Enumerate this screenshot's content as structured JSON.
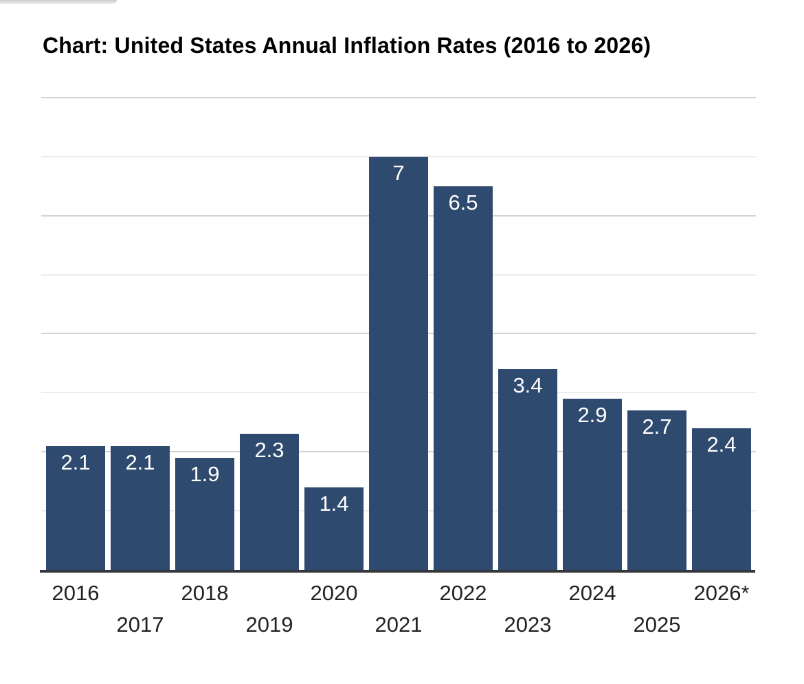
{
  "chart_data": {
    "type": "bar",
    "title": "Chart: United States Annual Inflation Rates (2016 to 2026)",
    "categories": [
      "2016",
      "2017",
      "2018",
      "2019",
      "2020",
      "2021",
      "2022",
      "2023",
      "2024",
      "2025",
      "2026*"
    ],
    "values": [
      2.1,
      2.1,
      1.9,
      2.3,
      1.4,
      7,
      6.5,
      3.4,
      2.9,
      2.7,
      2.4
    ],
    "bar_labels": [
      "2.1",
      "2.1",
      "1.9",
      "2.3",
      "1.4",
      "7",
      "6.5",
      "3.4",
      "2.9",
      "2.7",
      "2.4"
    ],
    "xlabel": "",
    "ylabel": "",
    "ylim": [
      0,
      8
    ],
    "gridline_interval": 1,
    "y_axis_labels_visible": false,
    "legend_position": "none",
    "grid": "horizontal",
    "tick_label_rows": "staggered-two-rows",
    "colors": {
      "bar": "#2e4a6e",
      "bar_label": "#ffffff",
      "gridline_major": "#d3d3d3",
      "gridline_minor": "#ececec",
      "axis_line": "#34373b",
      "title": "#000000",
      "tick_label": "#222222",
      "background": "#ffffff"
    }
  }
}
